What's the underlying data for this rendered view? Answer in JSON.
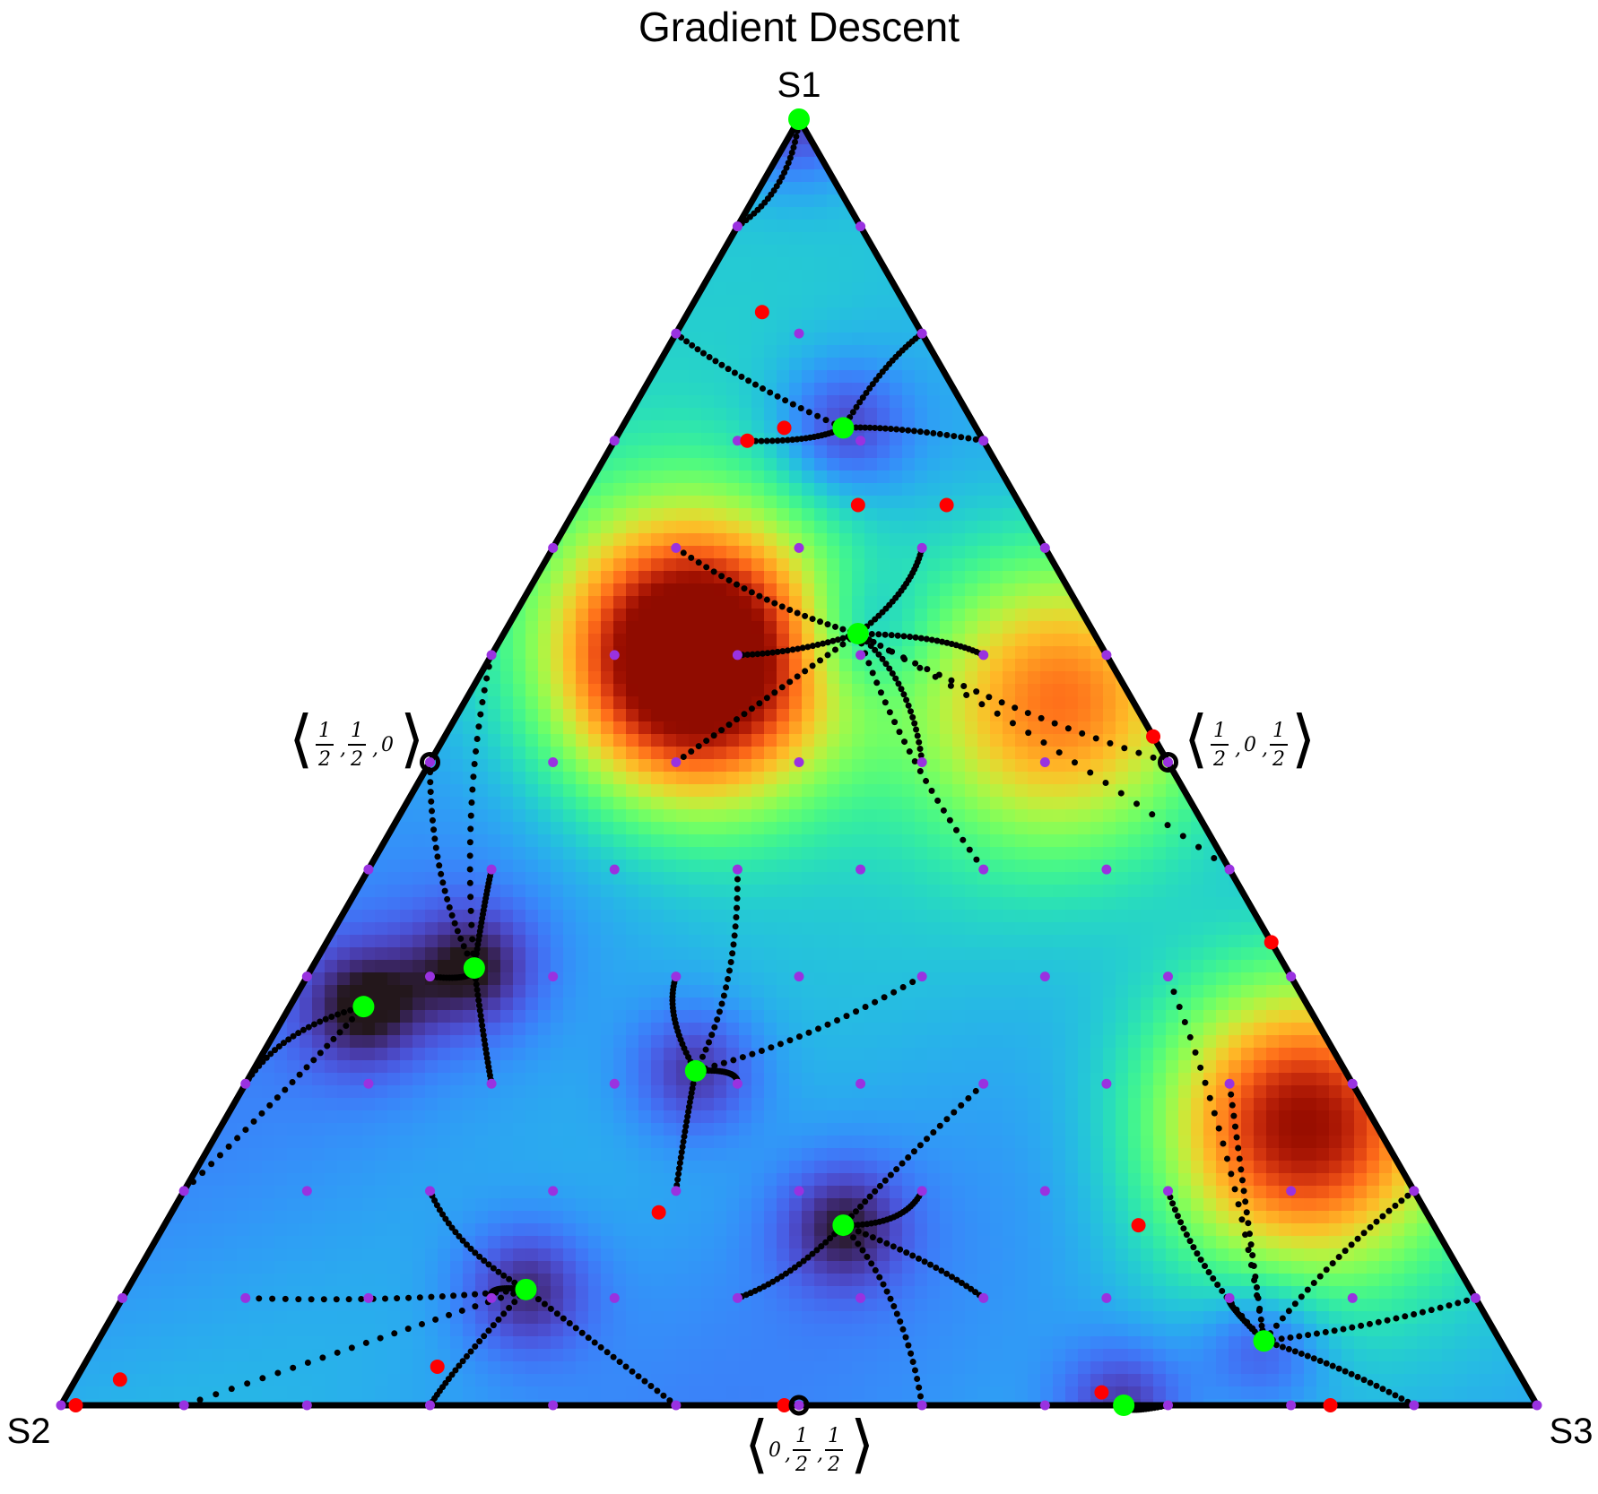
{
  "chart_data": {
    "type": "ternary",
    "title": "Gradient Descent",
    "vertices": [
      "S1",
      "S2",
      "S3"
    ],
    "midpoints": [
      {
        "coords": [
          "1",
          "2",
          "1",
          "2",
          "0"
        ]
      },
      {
        "coords": [
          "1",
          "2",
          "0",
          "1",
          "2"
        ]
      },
      {
        "coords": [
          "0",
          "1",
          "2",
          "1",
          "2"
        ]
      }
    ],
    "colormap": "turbo",
    "hotspots": [
      {
        "a": 0.58,
        "b": 0.28,
        "c": 0.14,
        "amplitude": 1.0
      },
      {
        "a": 0.22,
        "b": 0.05,
        "c": 0.73,
        "amplitude": 0.72
      },
      {
        "a": 0.55,
        "b": 0.05,
        "c": 0.4,
        "amplitude": 0.5
      }
    ],
    "start_points_grid": 13,
    "local_minima": [
      [
        1.0,
        0.0,
        0.0
      ],
      [
        0.76,
        0.09,
        0.15
      ],
      [
        0.6,
        0.16,
        0.24
      ],
      [
        0.34,
        0.55,
        0.11
      ],
      [
        0.26,
        0.44,
        0.3
      ],
      [
        0.14,
        0.4,
        0.46
      ],
      [
        0.09,
        0.64,
        0.27
      ],
      [
        0.31,
        0.64,
        0.05
      ],
      [
        0.05,
        0.16,
        0.79
      ],
      [
        0.0,
        0.28,
        0.72
      ]
    ],
    "end_points": [
      [
        0.75,
        0.16,
        0.09
      ],
      [
        0.76,
        0.13,
        0.11
      ],
      [
        0.7,
        0.11,
        0.19
      ],
      [
        0.85,
        0.1,
        0.05
      ],
      [
        0.7,
        0.05,
        0.25
      ],
      [
        0.52,
        0.0,
        0.48
      ],
      [
        0.36,
        0.0,
        0.64
      ],
      [
        0.15,
        0.52,
        0.33
      ],
      [
        0.02,
        0.95,
        0.03
      ],
      [
        0.0,
        0.99,
        0.01
      ],
      [
        0.0,
        0.51,
        0.49
      ],
      [
        0.0,
        0.14,
        0.86
      ],
      [
        0.14,
        0.2,
        0.66
      ],
      [
        0.01,
        0.29,
        0.7
      ],
      [
        0.03,
        0.73,
        0.24
      ]
    ]
  }
}
